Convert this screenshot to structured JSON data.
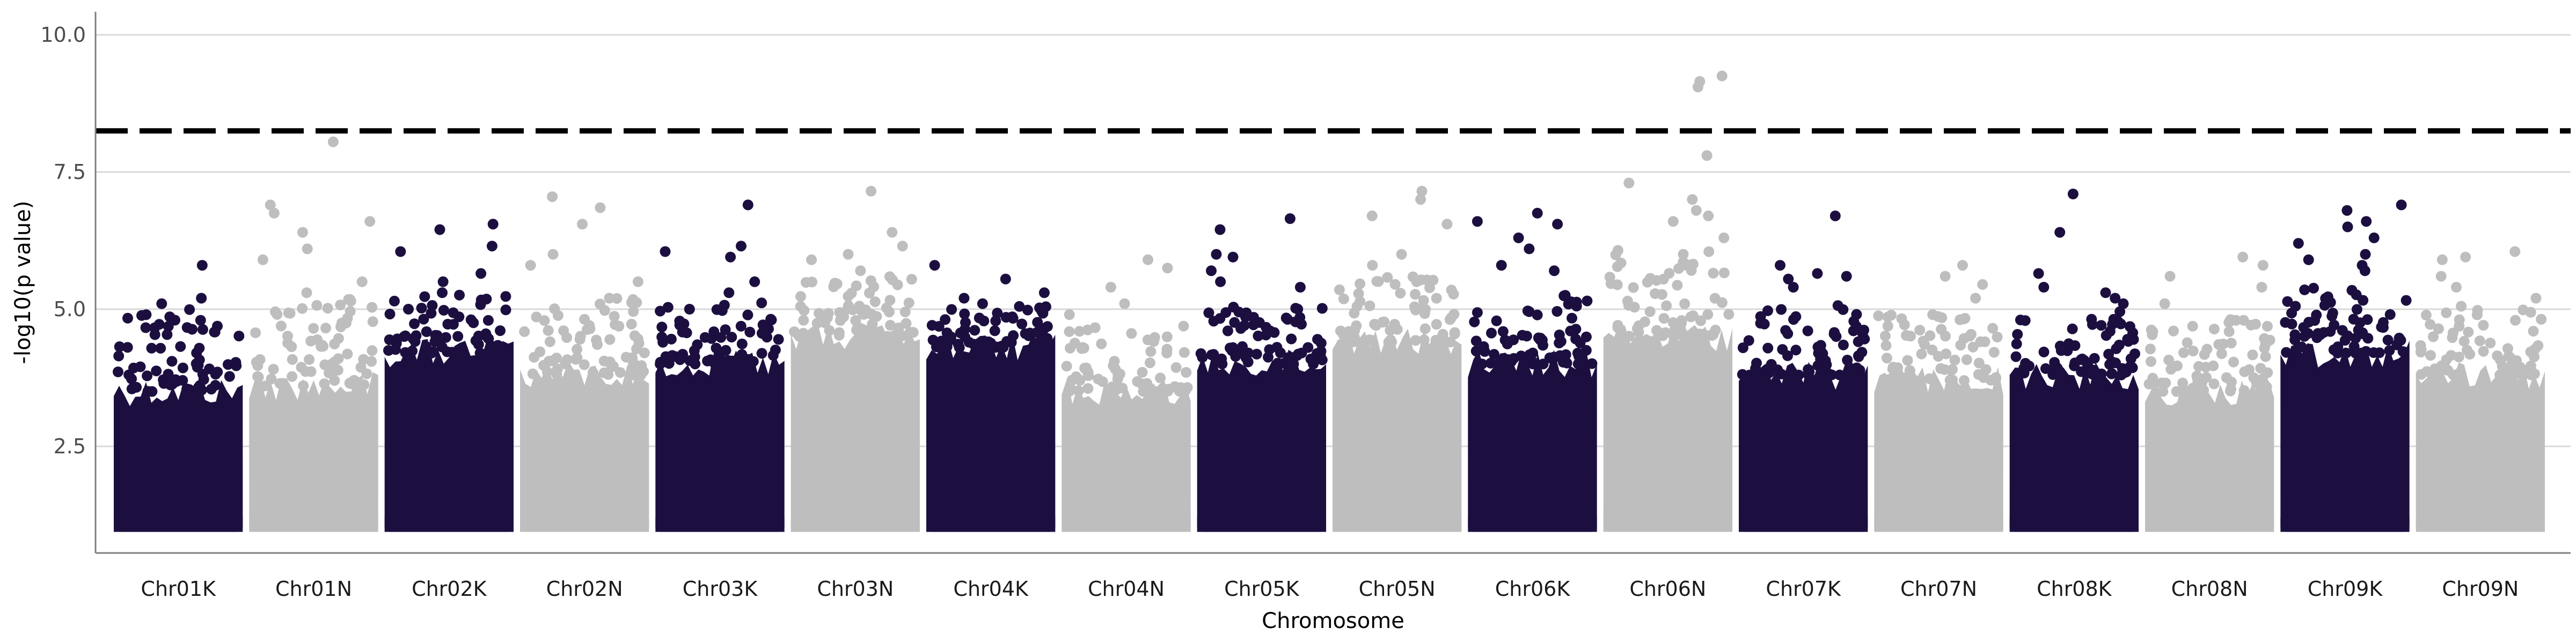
{
  "chart_data": {
    "type": "scatter",
    "title": "",
    "xlabel": "Chromosome",
    "ylabel": "-log10(p value)",
    "ylim": [
      0.6,
      10.5
    ],
    "yticks": [
      2.5,
      5.0,
      7.5,
      10.0
    ],
    "ytick_labels": [
      "2.5",
      "5.0",
      "7.5",
      "10.0"
    ],
    "grid": "horizontal major lines only",
    "legend": "none",
    "colors": {
      "dark": "#1c0f40",
      "light": "#bebebe",
      "threshold": "#000000",
      "grid": "#d9d9d9",
      "axis": "#7f7f7f"
    },
    "threshold": {
      "value": 8.25,
      "style": "dashed"
    },
    "baseline_min": 1.0,
    "categories": [
      "Chr01K",
      "Chr01N",
      "Chr02K",
      "Chr02N",
      "Chr03K",
      "Chr03N",
      "Chr04K",
      "Chr04N",
      "Chr05K",
      "Chr05N",
      "Chr06K",
      "Chr06N",
      "Chr07K",
      "Chr07N",
      "Chr08K",
      "Chr08N",
      "Chr09K",
      "Chr09N"
    ],
    "series": [
      {
        "category": "Chr01K",
        "color": "dark",
        "band_top": 3.5,
        "cloud_top": 4.7,
        "peaks": [
          5.8,
          5.2,
          5.1,
          4.9,
          4.8
        ]
      },
      {
        "category": "Chr01N",
        "color": "light",
        "band_top": 3.6,
        "cloud_top": 4.9,
        "peaks": [
          8.05,
          6.9,
          6.75,
          6.6,
          6.4,
          6.1,
          5.9,
          5.5,
          5.3
        ]
      },
      {
        "category": "Chr02K",
        "color": "dark",
        "band_top": 4.2,
        "cloud_top": 5.0,
        "peaks": [
          6.55,
          6.45,
          6.15,
          6.05,
          5.65,
          5.5,
          5.3
        ]
      },
      {
        "category": "Chr02N",
        "color": "light",
        "band_top": 3.8,
        "cloud_top": 4.9,
        "peaks": [
          7.05,
          6.85,
          6.55,
          6.0,
          5.8,
          5.5,
          5.2
        ]
      },
      {
        "category": "Chr03K",
        "color": "dark",
        "band_top": 4.0,
        "cloud_top": 4.9,
        "peaks": [
          6.9,
          6.15,
          6.05,
          5.95,
          5.5,
          5.3
        ]
      },
      {
        "category": "Chr03N",
        "color": "light",
        "band_top": 4.5,
        "cloud_top": 5.3,
        "peaks": [
          7.15,
          6.4,
          6.15,
          6.0,
          5.9,
          5.7
        ]
      },
      {
        "category": "Chr04K",
        "color": "dark",
        "band_top": 4.3,
        "cloud_top": 4.8,
        "peaks": [
          5.8,
          5.55,
          5.3,
          5.2,
          5.1
        ]
      },
      {
        "category": "Chr04N",
        "color": "light",
        "band_top": 3.5,
        "cloud_top": 4.4,
        "peaks": [
          5.9,
          5.75,
          5.4,
          5.1,
          4.9
        ]
      },
      {
        "category": "Chr05K",
        "color": "dark",
        "band_top": 4.0,
        "cloud_top": 4.9,
        "peaks": [
          6.65,
          6.45,
          6.0,
          5.95,
          5.7,
          5.5,
          5.4
        ]
      },
      {
        "category": "Chr05N",
        "color": "light",
        "band_top": 4.4,
        "cloud_top": 5.3,
        "peaks": [
          7.15,
          7.0,
          6.7,
          6.55,
          6.0,
          5.8
        ]
      },
      {
        "category": "Chr06K",
        "color": "dark",
        "band_top": 4.0,
        "cloud_top": 5.0,
        "peaks": [
          6.75,
          6.6,
          6.55,
          6.3,
          6.1,
          5.8,
          5.7
        ]
      },
      {
        "category": "Chr06N",
        "color": "light",
        "band_top": 4.5,
        "cloud_top": 5.8,
        "peaks": [
          9.25,
          9.15,
          9.05,
          7.8,
          7.3,
          7.0,
          6.8,
          6.7,
          6.6,
          6.3,
          6.0
        ]
      },
      {
        "category": "Chr07K",
        "color": "dark",
        "band_top": 3.8,
        "cloud_top": 4.8,
        "peaks": [
          6.7,
          5.8,
          5.65,
          5.6,
          5.55,
          5.4
        ]
      },
      {
        "category": "Chr07N",
        "color": "light",
        "band_top": 3.7,
        "cloud_top": 4.6,
        "peaks": [
          5.8,
          5.6,
          5.45,
          5.2,
          4.9
        ]
      },
      {
        "category": "Chr08K",
        "color": "dark",
        "band_top": 3.8,
        "cloud_top": 4.7,
        "peaks": [
          7.1,
          6.4,
          5.65,
          5.4,
          5.3,
          5.2,
          5.1
        ]
      },
      {
        "category": "Chr08N",
        "color": "light",
        "band_top": 3.5,
        "cloud_top": 4.6,
        "peaks": [
          5.95,
          5.8,
          5.6,
          5.4,
          5.1
        ]
      },
      {
        "category": "Chr09K",
        "color": "dark",
        "band_top": 4.2,
        "cloud_top": 5.1,
        "peaks": [
          6.9,
          6.8,
          6.6,
          6.5,
          6.3,
          6.2,
          6.0,
          5.9,
          5.8,
          5.7
        ]
      },
      {
        "category": "Chr09N",
        "color": "light",
        "band_top": 3.8,
        "cloud_top": 4.8,
        "peaks": [
          6.05,
          5.95,
          5.9,
          5.6,
          5.4,
          5.2
        ]
      }
    ]
  }
}
